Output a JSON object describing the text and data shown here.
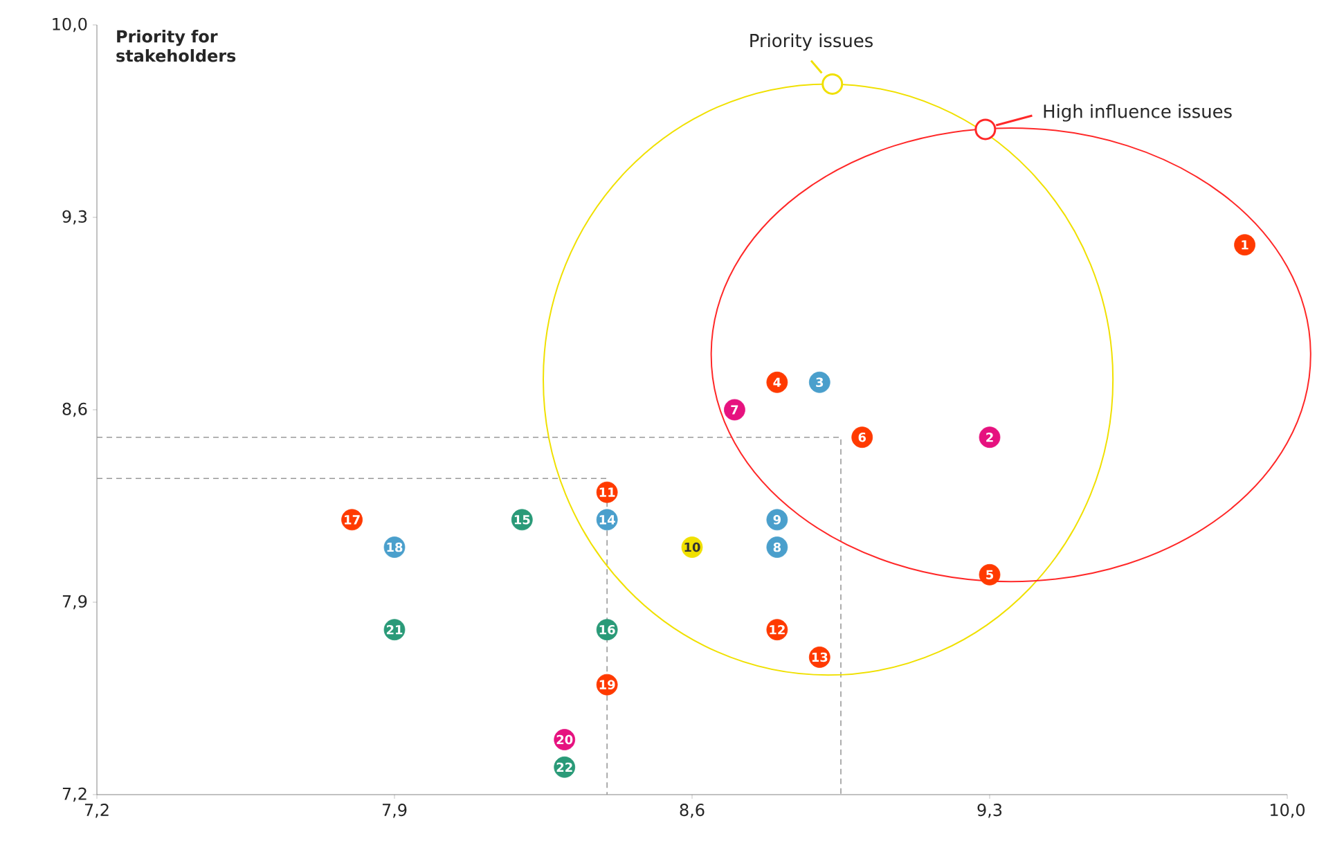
{
  "chart_data": {
    "type": "scatter",
    "ylabel": "Priority for stakeholders",
    "marker": "circle",
    "grid": false,
    "xlim": [
      7.2,
      10.0
    ],
    "ylim": [
      7.2,
      10.0
    ],
    "xticks": [
      {
        "value": 7.2,
        "label": "7,2"
      },
      {
        "value": 7.9,
        "label": "7,9"
      },
      {
        "value": 8.6,
        "label": "8,6"
      },
      {
        "value": 9.3,
        "label": "9,3"
      },
      {
        "value": 10.0,
        "label": "10,0"
      }
    ],
    "yticks": [
      {
        "value": 7.2,
        "label": "7,2"
      },
      {
        "value": 7.9,
        "label": "7,9"
      },
      {
        "value": 8.6,
        "label": "8,6"
      },
      {
        "value": 9.3,
        "label": "9,3"
      },
      {
        "value": 10.0,
        "label": "10,0"
      }
    ],
    "series": [
      {
        "color": "#ff3a00",
        "x": [
          9.9,
          8.8,
          9.3,
          9.0,
          8.4,
          8.8,
          8.9,
          7.8,
          8.4
        ],
        "values": [
          9.2,
          8.7,
          8.0,
          8.5,
          8.3,
          7.8,
          7.7,
          8.2,
          7.6
        ]
      },
      {
        "color": "#4a9fcc",
        "x": [
          8.9,
          8.8,
          8.8,
          8.4,
          7.9
        ],
        "values": [
          8.7,
          8.1,
          8.2,
          8.2,
          8.1
        ]
      },
      {
        "color": "#2a9a78",
        "x": [
          8.2,
          8.4,
          7.9,
          8.3
        ],
        "values": [
          8.2,
          7.8,
          7.8,
          7.3
        ]
      },
      {
        "color": "#e6127f",
        "x": [
          9.3,
          8.7,
          8.3
        ],
        "values": [
          8.5,
          8.6,
          7.4
        ]
      },
      {
        "color": "#f0e000",
        "x": [
          8.6
        ],
        "values": [
          8.1
        ]
      },
      {
        "type": "line",
        "line_style": "dashed",
        "marker": "none",
        "color": "#999999",
        "x": [
          7.2,
          8.95,
          8.95
        ],
        "values": [
          8.5,
          8.5,
          7.2
        ]
      },
      {
        "type": "line",
        "line_style": "dashed",
        "marker": "none",
        "color": "#999999",
        "x": [
          7.2,
          8.4,
          8.4
        ],
        "values": [
          8.35,
          8.35,
          7.2
        ]
      }
    ],
    "annotations": [
      {
        "text": "1",
        "x": 9.9,
        "y": 9.2
      },
      {
        "text": "2",
        "x": 9.3,
        "y": 8.5
      },
      {
        "text": "3",
        "x": 8.9,
        "y": 8.7
      },
      {
        "text": "4",
        "x": 8.8,
        "y": 8.7
      },
      {
        "text": "5",
        "x": 9.3,
        "y": 8.0
      },
      {
        "text": "6",
        "x": 9.0,
        "y": 8.5
      },
      {
        "text": "7",
        "x": 8.7,
        "y": 8.6
      },
      {
        "text": "8",
        "x": 8.8,
        "y": 8.1
      },
      {
        "text": "9",
        "x": 8.8,
        "y": 8.2
      },
      {
        "text": "10",
        "x": 8.6,
        "y": 8.1
      },
      {
        "text": "11",
        "x": 8.4,
        "y": 8.3
      },
      {
        "text": "12",
        "x": 8.8,
        "y": 7.8
      },
      {
        "text": "13",
        "x": 8.9,
        "y": 7.7
      },
      {
        "text": "14",
        "x": 8.4,
        "y": 8.2
      },
      {
        "text": "15",
        "x": 8.2,
        "y": 8.2
      },
      {
        "text": "16",
        "x": 8.4,
        "y": 7.8
      },
      {
        "text": "17",
        "x": 7.8,
        "y": 8.2
      },
      {
        "text": "18",
        "x": 7.9,
        "y": 8.1
      },
      {
        "text": "19",
        "x": 8.4,
        "y": 7.6
      },
      {
        "text": "20",
        "x": 8.3,
        "y": 7.4
      },
      {
        "text": "21",
        "x": 7.9,
        "y": 7.8
      },
      {
        "text": "22",
        "x": 8.3,
        "y": 7.3
      },
      "Priority issues",
      "High influence issues"
    ]
  }
}
